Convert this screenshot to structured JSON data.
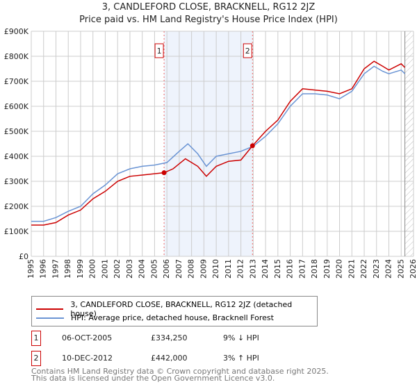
{
  "chart_data": {
    "type": "line",
    "title": "3, CANDLEFORD CLOSE, BRACKNELL, RG12 2JZ",
    "subtitle": "Price paid vs. HM Land Registry's House Price Index (HPI)",
    "xlim": [
      1995,
      2026
    ],
    "ylim": [
      0,
      900000
    ],
    "y_ticks": [
      "£0",
      "£100K",
      "£200K",
      "£300K",
      "£400K",
      "£500K",
      "£600K",
      "£700K",
      "£800K",
      "£900K"
    ],
    "x_ticks": [
      "1995",
      "1996",
      "1997",
      "1998",
      "1999",
      "2000",
      "2001",
      "2002",
      "2003",
      "2004",
      "2005",
      "2006",
      "2007",
      "2008",
      "2009",
      "2010",
      "2011",
      "2012",
      "2013",
      "2014",
      "2015",
      "2016",
      "2017",
      "2018",
      "2019",
      "2020",
      "2021",
      "2022",
      "2023",
      "2024",
      "2025",
      "2026"
    ],
    "series": [
      {
        "name": "3, CANDLEFORD CLOSE, BRACKNELL, RG12 2JZ (detached house)",
        "color": "#cc0000",
        "x": [
          1995,
          1996,
          1997,
          1998,
          1999,
          2000,
          2001,
          2002,
          2003,
          2004,
          2005.77,
          2006.5,
          2007.5,
          2008.5,
          2009.2,
          2010,
          2011,
          2012,
          2012.94,
          2014,
          2015,
          2016,
          2017,
          2018,
          2019,
          2020,
          2021,
          2022,
          2022.8,
          2023.5,
          2024,
          2025,
          2025.3
        ],
        "y": [
          125000,
          125000,
          135000,
          165000,
          185000,
          230000,
          260000,
          300000,
          320000,
          325000,
          334250,
          350000,
          390000,
          360000,
          320000,
          360000,
          380000,
          385000,
          442000,
          500000,
          545000,
          620000,
          670000,
          665000,
          660000,
          650000,
          670000,
          750000,
          780000,
          760000,
          745000,
          770000,
          755000
        ]
      },
      {
        "name": "HPI: Average price, detached house, Bracknell Forest",
        "color": "#6a94d4",
        "x": [
          1995,
          1996,
          1997,
          1998,
          1999,
          2000,
          2001,
          2002,
          2003,
          2004,
          2005,
          2006,
          2007,
          2007.7,
          2008.5,
          2009.2,
          2010,
          2011,
          2012,
          2013,
          2014,
          2015,
          2016,
          2017,
          2018,
          2019,
          2020,
          2021,
          2022,
          2022.8,
          2023.5,
          2024,
          2025,
          2025.3
        ],
        "y": [
          140000,
          140000,
          155000,
          180000,
          200000,
          250000,
          285000,
          330000,
          350000,
          360000,
          365000,
          375000,
          420000,
          450000,
          410000,
          360000,
          400000,
          410000,
          420000,
          440000,
          480000,
          530000,
          600000,
          650000,
          650000,
          645000,
          630000,
          660000,
          730000,
          760000,
          740000,
          730000,
          745000,
          730000
        ]
      }
    ],
    "sales": [
      {
        "label": "1",
        "x": 2005.77,
        "y": 334250,
        "date": "06-OCT-2005",
        "price": "£334,250",
        "hpi": "9% ↓ HPI"
      },
      {
        "label": "2",
        "x": 2012.94,
        "y": 442000,
        "date": "10-DEC-2012",
        "price": "£442,000",
        "hpi": "3% ↑ HPI"
      }
    ],
    "projection_start": 2025.3
  },
  "footer": {
    "line1": "Contains HM Land Registry data © Crown copyright and database right 2025.",
    "line2": "This data is licensed under the Open Government Licence v3.0."
  }
}
